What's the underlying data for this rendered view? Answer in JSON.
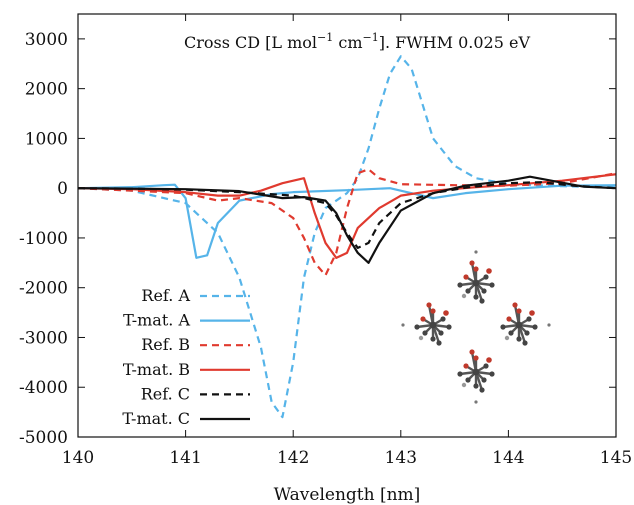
{
  "chart_data": {
    "type": "line",
    "title_prefix": "Cross CD [L mol",
    "title_sup1": "−1",
    "title_mid": " cm",
    "title_sup2": "−1",
    "title_suffix": "]. FWHM 0.025 eV",
    "xlabel": "Wavelength [nm]",
    "ylabel": "",
    "xlim": [
      140,
      145
    ],
    "ylim": [
      -5000,
      3500
    ],
    "x_ticks": [
      140,
      141,
      142,
      143,
      144,
      145
    ],
    "y_ticks": [
      -5000,
      -4000,
      -3000,
      -2000,
      -1000,
      0,
      1000,
      2000,
      3000
    ],
    "grid": false,
    "legend_position": "bottom-left",
    "series": [
      {
        "name": "Ref. A",
        "color": "#56b4e9",
        "dash": "dashed",
        "points": [
          [
            140,
            0
          ],
          [
            140.5,
            -50
          ],
          [
            141,
            -300
          ],
          [
            141.3,
            -900
          ],
          [
            141.5,
            -1800
          ],
          [
            141.7,
            -3200
          ],
          [
            141.8,
            -4300
          ],
          [
            141.9,
            -4600
          ],
          [
            142,
            -3500
          ],
          [
            142.1,
            -1800
          ],
          [
            142.2,
            -900
          ],
          [
            142.3,
            -400
          ],
          [
            142.5,
            -100
          ],
          [
            142.6,
            200
          ],
          [
            142.7,
            800
          ],
          [
            142.8,
            1600
          ],
          [
            142.9,
            2300
          ],
          [
            143,
            2650
          ],
          [
            143.1,
            2400
          ],
          [
            143.2,
            1700
          ],
          [
            143.3,
            1000
          ],
          [
            143.5,
            450
          ],
          [
            143.7,
            200
          ],
          [
            144,
            80
          ],
          [
            144.5,
            40
          ],
          [
            145,
            20
          ]
        ]
      },
      {
        "name": "T-mat. A",
        "color": "#56b4e9",
        "dash": "solid",
        "points": [
          [
            140,
            0
          ],
          [
            140.5,
            20
          ],
          [
            140.8,
            60
          ],
          [
            140.9,
            70
          ],
          [
            141,
            -200
          ],
          [
            141.1,
            -1400
          ],
          [
            141.2,
            -1350
          ],
          [
            141.3,
            -700
          ],
          [
            141.5,
            -250
          ],
          [
            141.8,
            -120
          ],
          [
            142,
            -80
          ],
          [
            142.5,
            -40
          ],
          [
            142.9,
            0
          ],
          [
            143.1,
            -100
          ],
          [
            143.3,
            -200
          ],
          [
            143.6,
            -100
          ],
          [
            144,
            -20
          ],
          [
            144.5,
            50
          ],
          [
            145,
            60
          ]
        ]
      },
      {
        "name": "Ref. B",
        "color": "#e03a2f",
        "dash": "dashed",
        "points": [
          [
            140,
            0
          ],
          [
            140.5,
            -50
          ],
          [
            141,
            -100
          ],
          [
            141.3,
            -250
          ],
          [
            141.5,
            -200
          ],
          [
            141.8,
            -300
          ],
          [
            142,
            -600
          ],
          [
            142.1,
            -1000
          ],
          [
            142.2,
            -1500
          ],
          [
            142.3,
            -1750
          ],
          [
            142.4,
            -1300
          ],
          [
            142.5,
            -400
          ],
          [
            142.6,
            300
          ],
          [
            142.7,
            380
          ],
          [
            142.8,
            200
          ],
          [
            143,
            80
          ],
          [
            143.5,
            60
          ],
          [
            144,
            50
          ],
          [
            144.5,
            100
          ],
          [
            145,
            300
          ]
        ]
      },
      {
        "name": "T-mat. B",
        "color": "#e03a2f",
        "dash": "solid",
        "points": [
          [
            140,
            0
          ],
          [
            140.5,
            -20
          ],
          [
            141,
            -80
          ],
          [
            141.3,
            -150
          ],
          [
            141.5,
            -150
          ],
          [
            141.7,
            -50
          ],
          [
            141.9,
            100
          ],
          [
            142.1,
            200
          ],
          [
            142.2,
            -500
          ],
          [
            142.3,
            -1100
          ],
          [
            142.4,
            -1400
          ],
          [
            142.5,
            -1300
          ],
          [
            142.6,
            -800
          ],
          [
            142.8,
            -400
          ],
          [
            143,
            -150
          ],
          [
            143.3,
            -50
          ],
          [
            143.7,
            20
          ],
          [
            144,
            60
          ],
          [
            144.5,
            150
          ],
          [
            145,
            280
          ]
        ]
      },
      {
        "name": "Ref. C",
        "color": "#111111",
        "dash": "dashed",
        "points": [
          [
            140,
            0
          ],
          [
            140.5,
            -10
          ],
          [
            141,
            -30
          ],
          [
            141.5,
            -80
          ],
          [
            142,
            -150
          ],
          [
            142.3,
            -300
          ],
          [
            142.4,
            -550
          ],
          [
            142.5,
            -900
          ],
          [
            142.6,
            -1200
          ],
          [
            142.7,
            -1100
          ],
          [
            142.8,
            -700
          ],
          [
            143,
            -300
          ],
          [
            143.3,
            -100
          ],
          [
            143.6,
            10
          ],
          [
            144,
            100
          ],
          [
            144.3,
            120
          ],
          [
            144.6,
            50
          ],
          [
            145,
            0
          ]
        ]
      },
      {
        "name": "T-mat. C",
        "color": "#111111",
        "dash": "solid",
        "points": [
          [
            140,
            0
          ],
          [
            140.5,
            -10
          ],
          [
            141,
            -20
          ],
          [
            141.5,
            -60
          ],
          [
            141.9,
            -200
          ],
          [
            142.1,
            -180
          ],
          [
            142.3,
            -250
          ],
          [
            142.4,
            -500
          ],
          [
            142.5,
            -950
          ],
          [
            142.6,
            -1300
          ],
          [
            142.7,
            -1500
          ],
          [
            142.8,
            -1100
          ],
          [
            143,
            -450
          ],
          [
            143.3,
            -100
          ],
          [
            143.6,
            50
          ],
          [
            144,
            150
          ],
          [
            144.2,
            230
          ],
          [
            144.4,
            150
          ],
          [
            144.7,
            30
          ],
          [
            145,
            0
          ]
        ]
      }
    ]
  }
}
